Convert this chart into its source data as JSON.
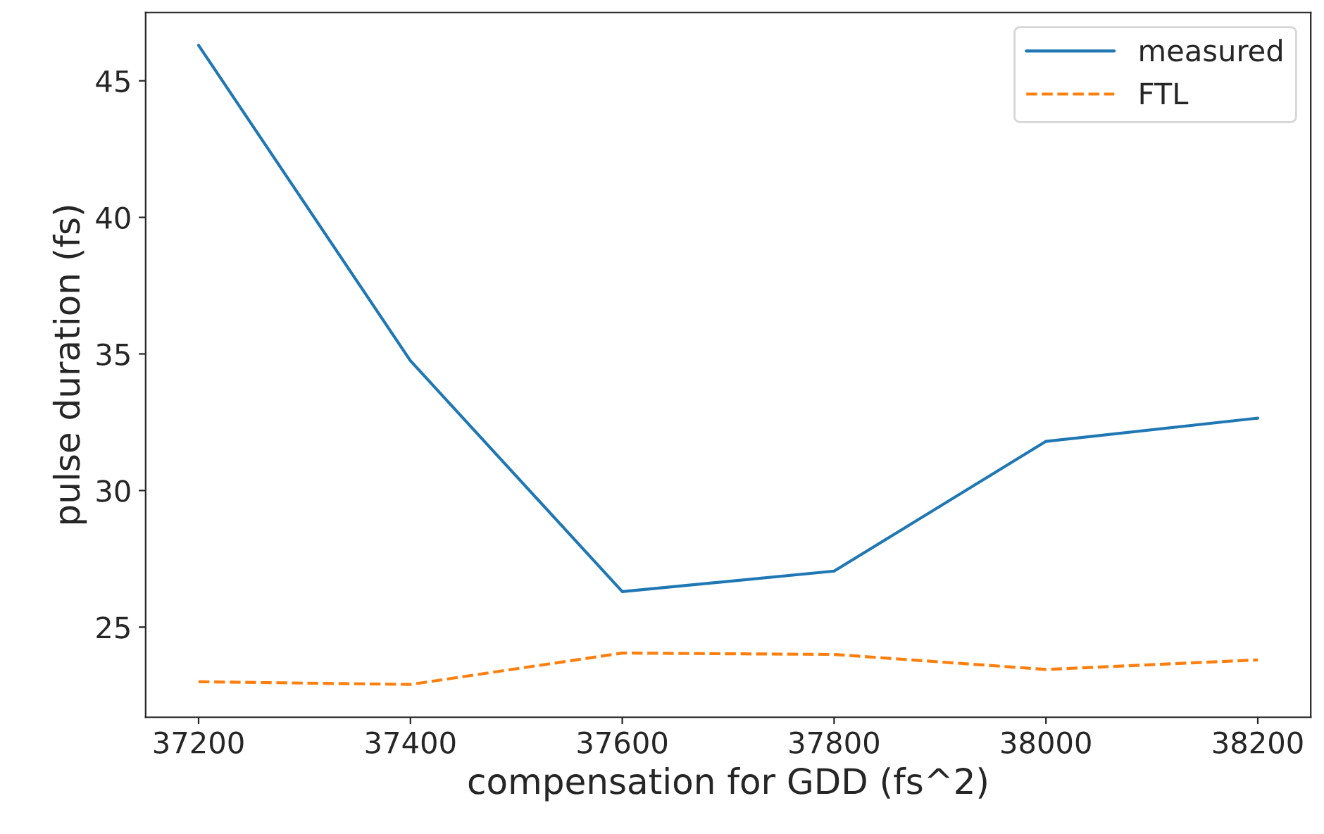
{
  "chart_data": {
    "type": "line",
    "xlabel": "compensation for GDD (fs^2)",
    "ylabel": "pulse duration (fs)",
    "x": [
      37200,
      37400,
      37600,
      37800,
      38000,
      38200
    ],
    "series": [
      {
        "name": "measured",
        "color": "#1f77b4",
        "line_style": "solid",
        "values": [
          46.3,
          34.75,
          26.3,
          27.05,
          31.8,
          32.65
        ]
      },
      {
        "name": "FTL",
        "color": "#ff7f0e",
        "line_style": "dashed",
        "values": [
          23.0,
          22.9,
          24.05,
          24.0,
          23.45,
          23.8
        ]
      }
    ],
    "xlim": [
      37150,
      38250
    ],
    "xticks": [
      37200,
      37400,
      37600,
      37800,
      38000,
      38200
    ],
    "ylim": [
      21.7,
      47.5
    ],
    "yticks": [
      25,
      30,
      35,
      40,
      45
    ],
    "grid": false,
    "legend": "top right",
    "marker": "none"
  }
}
